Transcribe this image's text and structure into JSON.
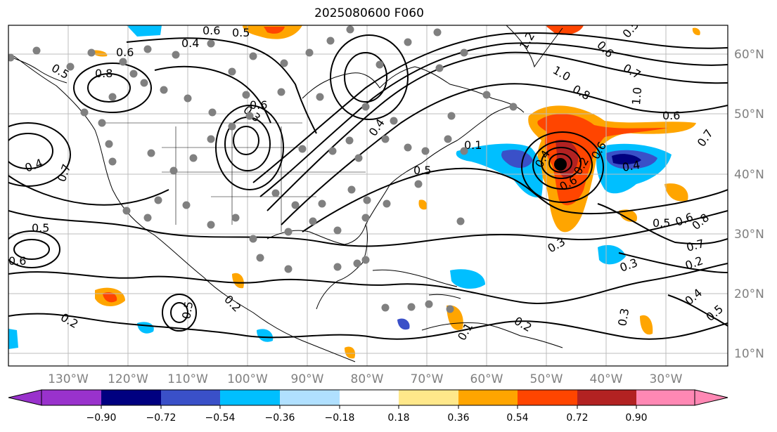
{
  "title": "2025080600 F060",
  "lon_labels": [
    "130°W",
    "120°W",
    "110°W",
    "100°W",
    "90°W",
    "80°W",
    "70°W",
    "60°W",
    "50°W",
    "40°W",
    "30°W"
  ],
  "lat_labels": [
    "60°N",
    "50°N",
    "40°N",
    "30°N",
    "20°N",
    "10°N"
  ],
  "colorbar": {
    "ticks": [
      "−0.90",
      "−0.72",
      "−0.54",
      "−0.36",
      "−0.18",
      "0.18",
      "0.36",
      "0.54",
      "0.72",
      "0.90"
    ],
    "colors": [
      "#9932cc",
      "#000080",
      "#3a50c8",
      "#00bfff",
      "#b0e0ff",
      "#ffffff",
      "#ffe88a",
      "#ffa500",
      "#ff4500",
      "#b22222",
      "#ff88b4"
    ]
  },
  "contour_labels": [
    "0.6",
    "0.5",
    "0.4",
    "0.8",
    "0.6",
    "0.5",
    "0.4",
    "0.7",
    "0.5",
    "0.6",
    "0.2",
    "0.2",
    "0.3",
    "0.6",
    "0.4",
    "1.2",
    "1.0",
    "0.8",
    "0.7",
    "1.0",
    "0.5",
    "0.6",
    "0.6",
    "0.7",
    "0.4",
    "0.5",
    "0.6",
    "0.8",
    "0.7",
    "0.3",
    "0.3",
    "0.2",
    "0.3",
    "0.4",
    "0.5",
    "0.2",
    "0.1",
    "0.1",
    "0.4",
    "0.5",
    "0.6",
    "0.2",
    "0.6",
    "0.5"
  ],
  "icons": {
    "station": "station-marker-icon",
    "low": "low-center-icon"
  }
}
